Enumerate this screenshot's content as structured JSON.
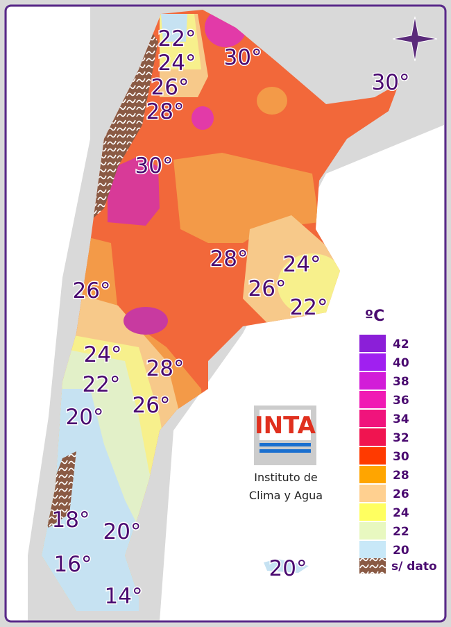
{
  "labels": [
    "22°",
    "30°",
    "24°",
    "26°",
    "28°",
    "30°",
    "30°",
    "28°",
    "24°",
    "26°",
    "22°",
    "26°",
    "24°",
    "28°",
    "22°",
    "26°",
    "20°",
    "18°",
    "20°",
    "16°",
    "20°",
    "14°"
  ],
  "legend": {
    "title": "ºC",
    "items": [
      {
        "label": "42",
        "color": "#8b1fd8"
      },
      {
        "label": "40",
        "color": "#a020f0"
      },
      {
        "label": "38",
        "color": "#d21cd8"
      },
      {
        "label": "36",
        "color": "#f01ab4"
      },
      {
        "label": "34",
        "color": "#f0147c"
      },
      {
        "label": "32",
        "color": "#f01450"
      },
      {
        "label": "30",
        "color": "#ff3a00"
      },
      {
        "label": "28",
        "color": "#ffa500"
      },
      {
        "label": "26",
        "color": "#ffd090"
      },
      {
        "label": "24",
        "color": "#ffff60"
      },
      {
        "label": "22",
        "color": "#e8f8c0"
      },
      {
        "label": "20",
        "color": "#c8e8f8"
      }
    ],
    "no_data": "s/ dato"
  },
  "logo": {
    "text": "INTA",
    "caption": [
      "Instituto de",
      "Clima y Agua"
    ]
  }
}
